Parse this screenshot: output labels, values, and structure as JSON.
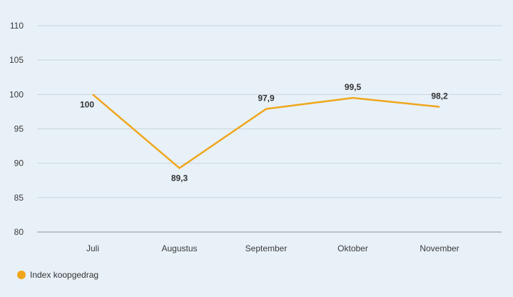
{
  "chart_data": {
    "type": "line",
    "title": "",
    "xlabel": "",
    "ylabel": "",
    "categories": [
      "Juli",
      "Augustus",
      "September",
      "Oktober",
      "November"
    ],
    "series": [
      {
        "name": "Index koopgedrag",
        "values": [
          100,
          89.3,
          97.9,
          99.5,
          98.2
        ],
        "labels": [
          "100",
          "89,3",
          "97,9",
          "99,5",
          "98,2"
        ],
        "color": "#f0a61b"
      }
    ],
    "ylim": [
      80,
      110
    ],
    "yticks": [
      80,
      85,
      90,
      95,
      100,
      105,
      110
    ],
    "ytick_labels": [
      "80",
      "85",
      "90",
      "95",
      "100",
      "105",
      "110"
    ],
    "grid": true,
    "legend_position": "bottom-left"
  },
  "legend": {
    "label": "Index koopgedrag"
  },
  "colors": {
    "background": "#e8f1f8",
    "grid": "#c9d4dc",
    "series": "#f0a61b"
  }
}
